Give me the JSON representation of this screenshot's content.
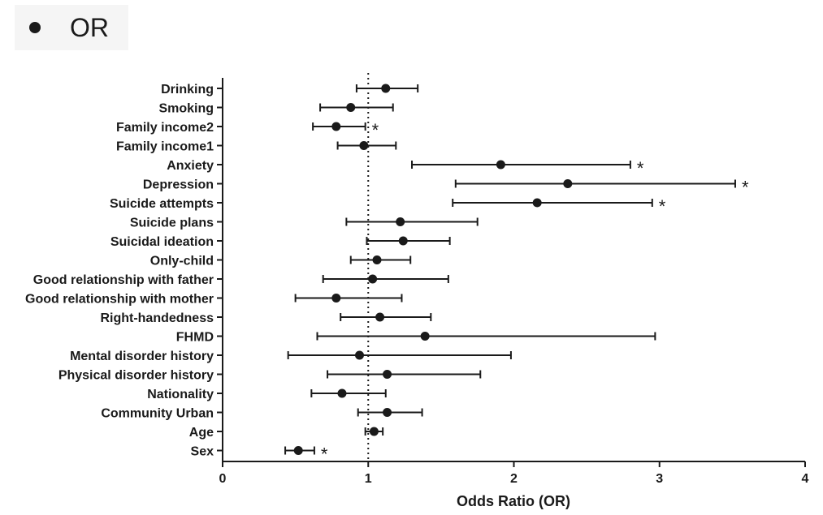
{
  "chart_data": {
    "type": "forest",
    "legend": {
      "label": "OR",
      "color": "#1a1a1a"
    },
    "xlabel": "Odds Ratio (OR)",
    "xlim": [
      0,
      4
    ],
    "xticks": [
      "0",
      "1",
      "2",
      "3",
      "4"
    ],
    "reference_line": 1,
    "significance_marker": "*",
    "rows": [
      {
        "label": "Drinking",
        "or": 1.12,
        "lo": 0.92,
        "hi": 1.34,
        "sig": false
      },
      {
        "label": "Smoking",
        "or": 0.88,
        "lo": 0.67,
        "hi": 1.17,
        "sig": false
      },
      {
        "label": "Family  income2",
        "or": 0.78,
        "lo": 0.62,
        "hi": 0.98,
        "sig": true
      },
      {
        "label": "Family  income1",
        "or": 0.97,
        "lo": 0.79,
        "hi": 1.19,
        "sig": false
      },
      {
        "label": "Anxiety",
        "or": 1.91,
        "lo": 1.3,
        "hi": 2.8,
        "sig": true
      },
      {
        "label": "Depression",
        "or": 2.37,
        "lo": 1.6,
        "hi": 3.52,
        "sig": true
      },
      {
        "label": "Suicide attempts",
        "or": 2.16,
        "lo": 1.58,
        "hi": 2.95,
        "sig": true
      },
      {
        "label": "Suicide plans",
        "or": 1.22,
        "lo": 0.85,
        "hi": 1.75,
        "sig": false
      },
      {
        "label": "Suicidal ideation",
        "or": 1.24,
        "lo": 0.99,
        "hi": 1.56,
        "sig": false
      },
      {
        "label": "Only-child",
        "or": 1.06,
        "lo": 0.88,
        "hi": 1.29,
        "sig": false
      },
      {
        "label": "Good relationship with father",
        "or": 1.03,
        "lo": 0.69,
        "hi": 1.55,
        "sig": false
      },
      {
        "label": "Good relationship with mother",
        "or": 0.78,
        "lo": 0.5,
        "hi": 1.23,
        "sig": false
      },
      {
        "label": "Right-handedness",
        "or": 1.08,
        "lo": 0.81,
        "hi": 1.43,
        "sig": false
      },
      {
        "label": "FHMD",
        "or": 1.39,
        "lo": 0.65,
        "hi": 2.97,
        "sig": false
      },
      {
        "label": "Mental disorder history",
        "or": 0.94,
        "lo": 0.45,
        "hi": 1.98,
        "sig": false
      },
      {
        "label": "Physical disorder history",
        "or": 1.13,
        "lo": 0.72,
        "hi": 1.77,
        "sig": false
      },
      {
        "label": "Nationality",
        "or": 0.82,
        "lo": 0.61,
        "hi": 1.12,
        "sig": false
      },
      {
        "label": "Community Urban",
        "or": 1.13,
        "lo": 0.93,
        "hi": 1.37,
        "sig": false
      },
      {
        "label": "Age",
        "or": 1.04,
        "lo": 0.98,
        "hi": 1.1,
        "sig": false
      },
      {
        "label": "Sex",
        "or": 0.52,
        "lo": 0.43,
        "hi": 0.63,
        "sig": true
      }
    ]
  }
}
